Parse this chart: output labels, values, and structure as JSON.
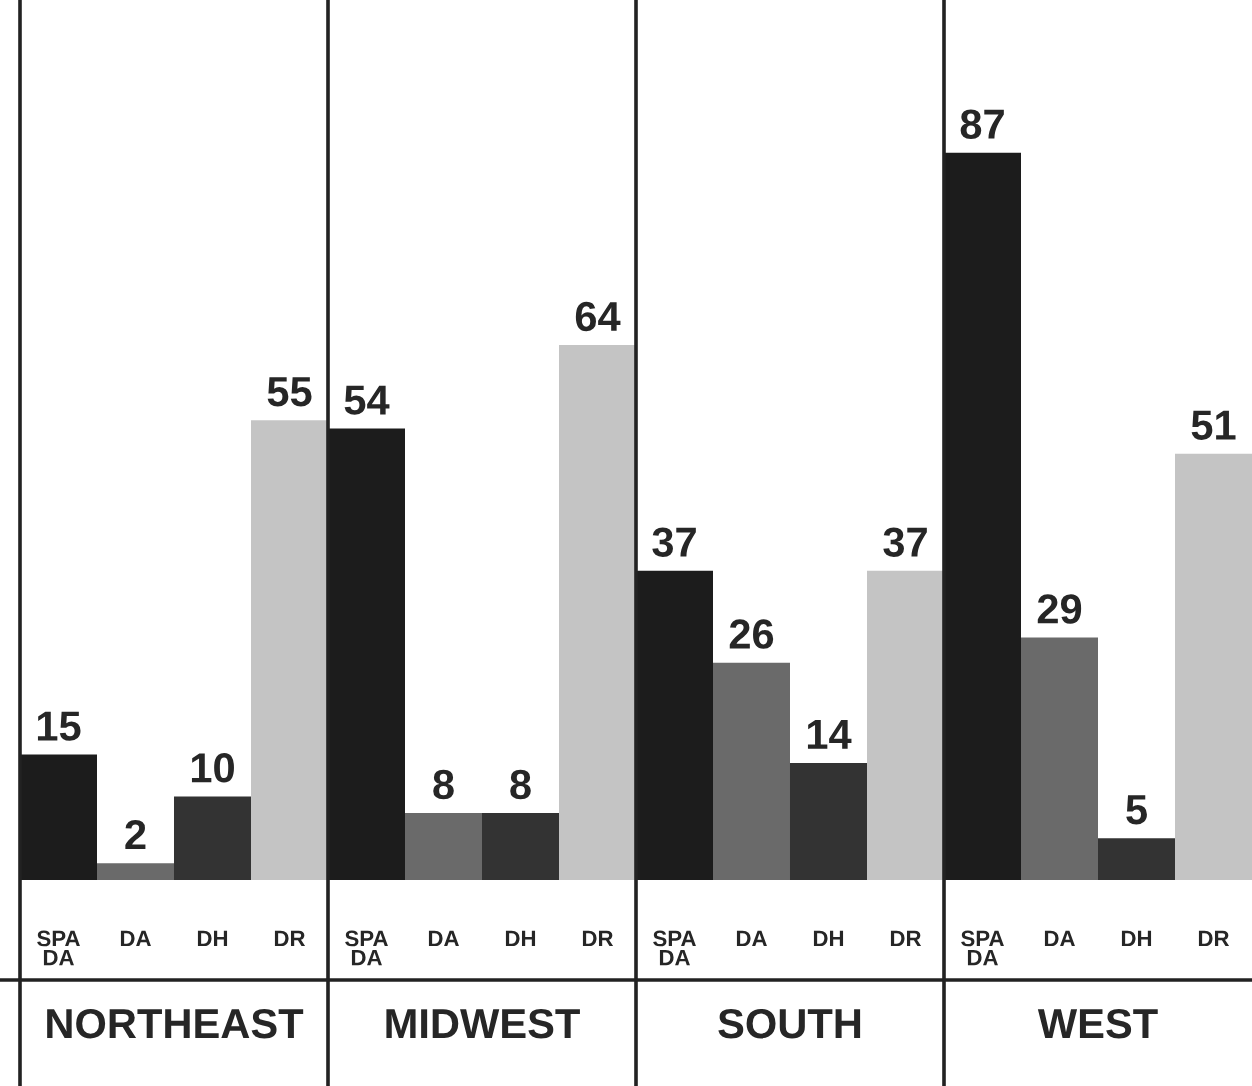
{
  "chart_data": {
    "type": "bar",
    "relative": false,
    "categories": [
      "NORTHEAST",
      "MIDWEST",
      "SOUTH",
      "WEST"
    ],
    "series": [
      {
        "name": "SPA DA",
        "color": "#1c1c1c",
        "values": [
          15,
          54,
          37,
          87
        ]
      },
      {
        "name": "DA",
        "color": "#6a6a6a",
        "values": [
          2,
          8,
          26,
          29
        ]
      },
      {
        "name": "DH",
        "color": "#333333",
        "values": [
          10,
          8,
          14,
          5
        ]
      },
      {
        "name": "DR",
        "color": "#c4c4c4",
        "values": [
          55,
          64,
          37,
          51
        ]
      }
    ],
    "data_labels": true,
    "grid": false,
    "legend": false
  }
}
